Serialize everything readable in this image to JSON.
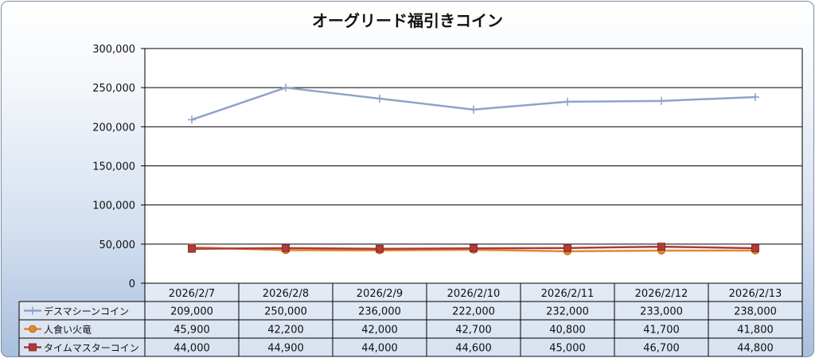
{
  "chart_data": {
    "type": "line",
    "title": "オーグリード福引きコイン",
    "categories": [
      "2026/2/7",
      "2026/2/8",
      "2026/2/9",
      "2026/2/10",
      "2026/2/11",
      "2026/2/12",
      "2026/2/13"
    ],
    "ylim": [
      0,
      300000
    ],
    "yticks": [
      "0",
      "50,000",
      "100,000",
      "150,000",
      "200,000",
      "250,000",
      "300,000"
    ],
    "grid": true,
    "legend": "data-table",
    "series": [
      {
        "name": "デスマシーンコイン",
        "marker": "plus",
        "color": "#8ea3c8",
        "values": [
          209000,
          250000,
          236000,
          222000,
          232000,
          233000,
          238000
        ],
        "labels": [
          "209,000",
          "250,000",
          "236,000",
          "222,000",
          "232,000",
          "233,000",
          "238,000"
        ]
      },
      {
        "name": "人食い火竜",
        "marker": "circle",
        "color": "#e08a2c",
        "values": [
          45900,
          42200,
          42000,
          42700,
          40800,
          41700,
          41800
        ],
        "labels": [
          "45,900",
          "42,200",
          "42,000",
          "42,700",
          "40,800",
          "41,700",
          "41,800"
        ]
      },
      {
        "name": "タイムマスターコイン",
        "marker": "square",
        "color": "#b03a3a",
        "values": [
          44000,
          44900,
          44000,
          44600,
          45000,
          46700,
          44800
        ],
        "labels": [
          "44,000",
          "44,900",
          "44,000",
          "44,600",
          "45,000",
          "46,700",
          "44,800"
        ]
      }
    ]
  }
}
